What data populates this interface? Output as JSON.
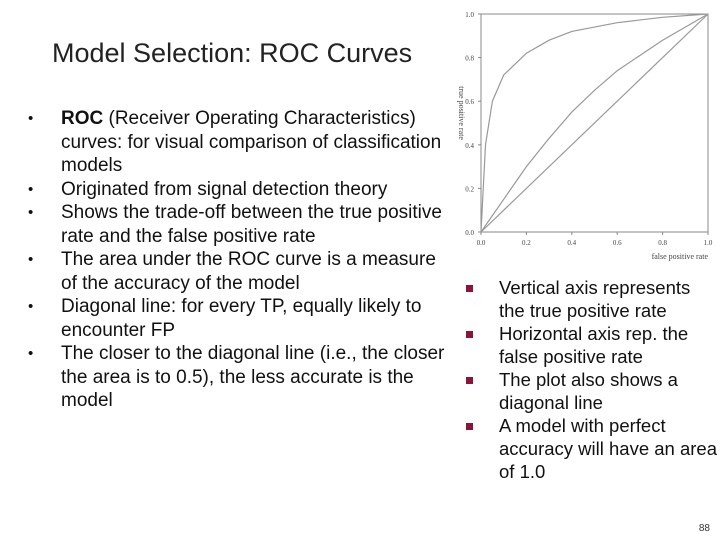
{
  "title": "Model Selection: ROC Curves",
  "bullets": [
    {
      "bold": "ROC",
      "text": " (Receiver Operating Characteristics) curves: for visual comparison of classification models"
    },
    {
      "bold": "",
      "text": "Originated from signal detection theory"
    },
    {
      "bold": "",
      "text": "Shows the trade-off between the true positive rate and the false positive rate"
    },
    {
      "bold": "",
      "text": "The area under the ROC curve is a measure of the accuracy of the model"
    },
    {
      "bold": "",
      "text": "Diagonal line: for every TP, equally likely to encounter FP"
    },
    {
      "bold": "",
      "text": "The closer to the diagonal line (i.e., the closer the area is to 0.5), the less accurate is the model"
    }
  ],
  "sub_bullets": [
    "Vertical axis represents the true positive rate",
    "Horizontal axis rep. the false positive rate",
    "The plot also shows a diagonal line",
    "A model with perfect accuracy will have an area of 1.0"
  ],
  "chart_data": {
    "type": "line",
    "xlabel": "false positive rate",
    "ylabel": "true positive rate",
    "xlim": [
      0,
      1
    ],
    "ylim": [
      0,
      1
    ],
    "x_ticks": [
      "0.0",
      "0.2",
      "0.4",
      "0.6",
      "0.8",
      "1.0"
    ],
    "y_ticks": [
      "0.0",
      "0.2",
      "0.4",
      "0.6",
      "0.8",
      "1.0"
    ],
    "series": [
      {
        "x": [
          0,
          0.02,
          0.05,
          0.1,
          0.2,
          0.3,
          0.4,
          0.6,
          0.8,
          1.0
        ],
        "y": [
          0,
          0.4,
          0.6,
          0.72,
          0.82,
          0.88,
          0.92,
          0.96,
          0.985,
          1.0
        ]
      },
      {
        "x": [
          0,
          0.1,
          0.2,
          0.3,
          0.4,
          0.5,
          0.6,
          0.8,
          1.0
        ],
        "y": [
          0,
          0.15,
          0.3,
          0.43,
          0.55,
          0.65,
          0.74,
          0.88,
          1.0
        ]
      },
      {
        "x": [
          0,
          1
        ],
        "y": [
          0,
          1
        ]
      }
    ]
  },
  "page_number": "88"
}
